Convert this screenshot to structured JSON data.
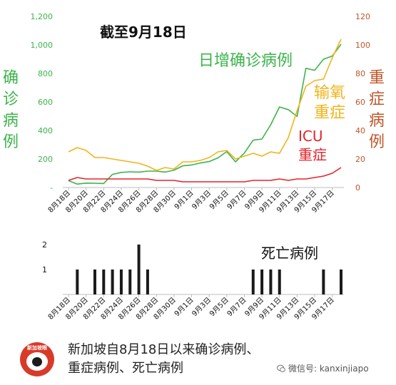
{
  "chart_data": [
    {
      "type": "line",
      "title": "截至9月18日",
      "x": [
        "8月18日",
        "8月19日",
        "8月20日",
        "8月21日",
        "8月22日",
        "8月23日",
        "8月24日",
        "8月25日",
        "8月26日",
        "8月27日",
        "8月28日",
        "8月29日",
        "8月30日",
        "8月31日",
        "9月1日",
        "9月2日",
        "9月3日",
        "9月4日",
        "9月5日",
        "9月6日",
        "9月7日",
        "9月8日",
        "9月9日",
        "9月10日",
        "9月11日",
        "9月12日",
        "9月13日",
        "9月14日",
        "9月15日",
        "9月16日",
        "9月17日",
        "9月18日"
      ],
      "xticks": [
        "8月18日",
        "8月20日",
        "8月22日",
        "8月24日",
        "8月26日",
        "8月28日",
        "8月30日",
        "9月1日",
        "9月3日",
        "9月5日",
        "9月7日",
        "9月9日",
        "9月11日",
        "9月13日",
        "9月15日",
        "9月17日"
      ],
      "y_left": {
        "ticks": [
          "-",
          "200",
          "400",
          "600",
          "800",
          "1,000",
          "1,200"
        ],
        "ylim": [
          0,
          1200
        ],
        "label": "确诊病例"
      },
      "y_right": {
        "ticks": [
          "0",
          "20",
          "40",
          "60",
          "80",
          "100",
          "120"
        ],
        "ylim": [
          0,
          120
        ],
        "label": "重症病例"
      },
      "series": [
        {
          "name": "日增确诊病例",
          "axis": "left",
          "color": "#3cb44b",
          "values": [
            48,
            24,
            31,
            30,
            28,
            92,
            106,
            110,
            108,
            115,
            115,
            108,
            122,
            152,
            158,
            172,
            182,
            208,
            252,
            180,
            242,
            332,
            340,
            440,
            565,
            546,
            498,
            836,
            822,
            900,
            922,
            1005
          ]
        },
        {
          "name": "输氧重症",
          "axis": "right",
          "color": "#f0b41c",
          "values": [
            25,
            28,
            26,
            21,
            21,
            20,
            19,
            18,
            17,
            15,
            12,
            14,
            13,
            18,
            18,
            19,
            21,
            25,
            26,
            20,
            22,
            24,
            22,
            25,
            24,
            35,
            54,
            71,
            75,
            76,
            91,
            104
          ]
        },
        {
          "name": "ICU重症",
          "axis": "right",
          "color": "#e5232b",
          "values": [
            5,
            7,
            6,
            6,
            6,
            6,
            6,
            6,
            6,
            6,
            5,
            5,
            5,
            4,
            4,
            4,
            4,
            4,
            4,
            4,
            4,
            5,
            5,
            5,
            6,
            5,
            6,
            6,
            7,
            8,
            10,
            14
          ]
        }
      ],
      "legend": [
        {
          "text": "日增确诊病例",
          "color": "#3cb44b"
        },
        {
          "text": "输氧\n重症",
          "color": "#f0b41c"
        },
        {
          "text": "ICU\n重症",
          "color": "#e5232b"
        }
      ]
    },
    {
      "type": "bar",
      "title": "死亡病例",
      "color": "#1a1a1a",
      "ylim": [
        0,
        2
      ],
      "yticks": [
        "1",
        "2"
      ],
      "x": [
        "8月18日",
        "8月19日",
        "8月20日",
        "8月21日",
        "8月22日",
        "8月23日",
        "8月24日",
        "8月25日",
        "8月26日",
        "8月27日",
        "8月28日",
        "8月29日",
        "8月30日",
        "8月31日",
        "9月1日",
        "9月2日",
        "9月3日",
        "9月4日",
        "9月5日",
        "9月6日",
        "9月7日",
        "9月8日",
        "9月9日",
        "9月10日",
        "9月11日",
        "9月12日",
        "9月13日",
        "9月14日",
        "9月15日",
        "9月16日",
        "9月17日",
        "9月18日"
      ],
      "xticks": [
        "8月18日",
        "8月20日",
        "8月22日",
        "8月24日",
        "8月26日",
        "8月28日",
        "8月30日",
        "9月1日",
        "9月3日",
        "9月5日",
        "9月7日",
        "9月9日",
        "9月11日",
        "9月13日",
        "9月15日",
        "9月17日"
      ],
      "values": [
        0,
        1,
        0,
        1,
        1,
        1,
        1,
        1,
        2,
        1,
        0,
        0,
        0,
        0,
        0,
        0,
        0,
        0,
        0,
        0,
        0,
        1,
        1,
        1,
        1,
        0,
        0,
        0,
        0,
        1,
        0,
        1
      ]
    }
  ],
  "footer": {
    "caption_line1": "新加坡自8月18日以来确诊病例、",
    "caption_line2": "重症病例、死亡病例",
    "logo_text": "新加坡眼",
    "wechat": "微信号: kanxinjiapo"
  }
}
